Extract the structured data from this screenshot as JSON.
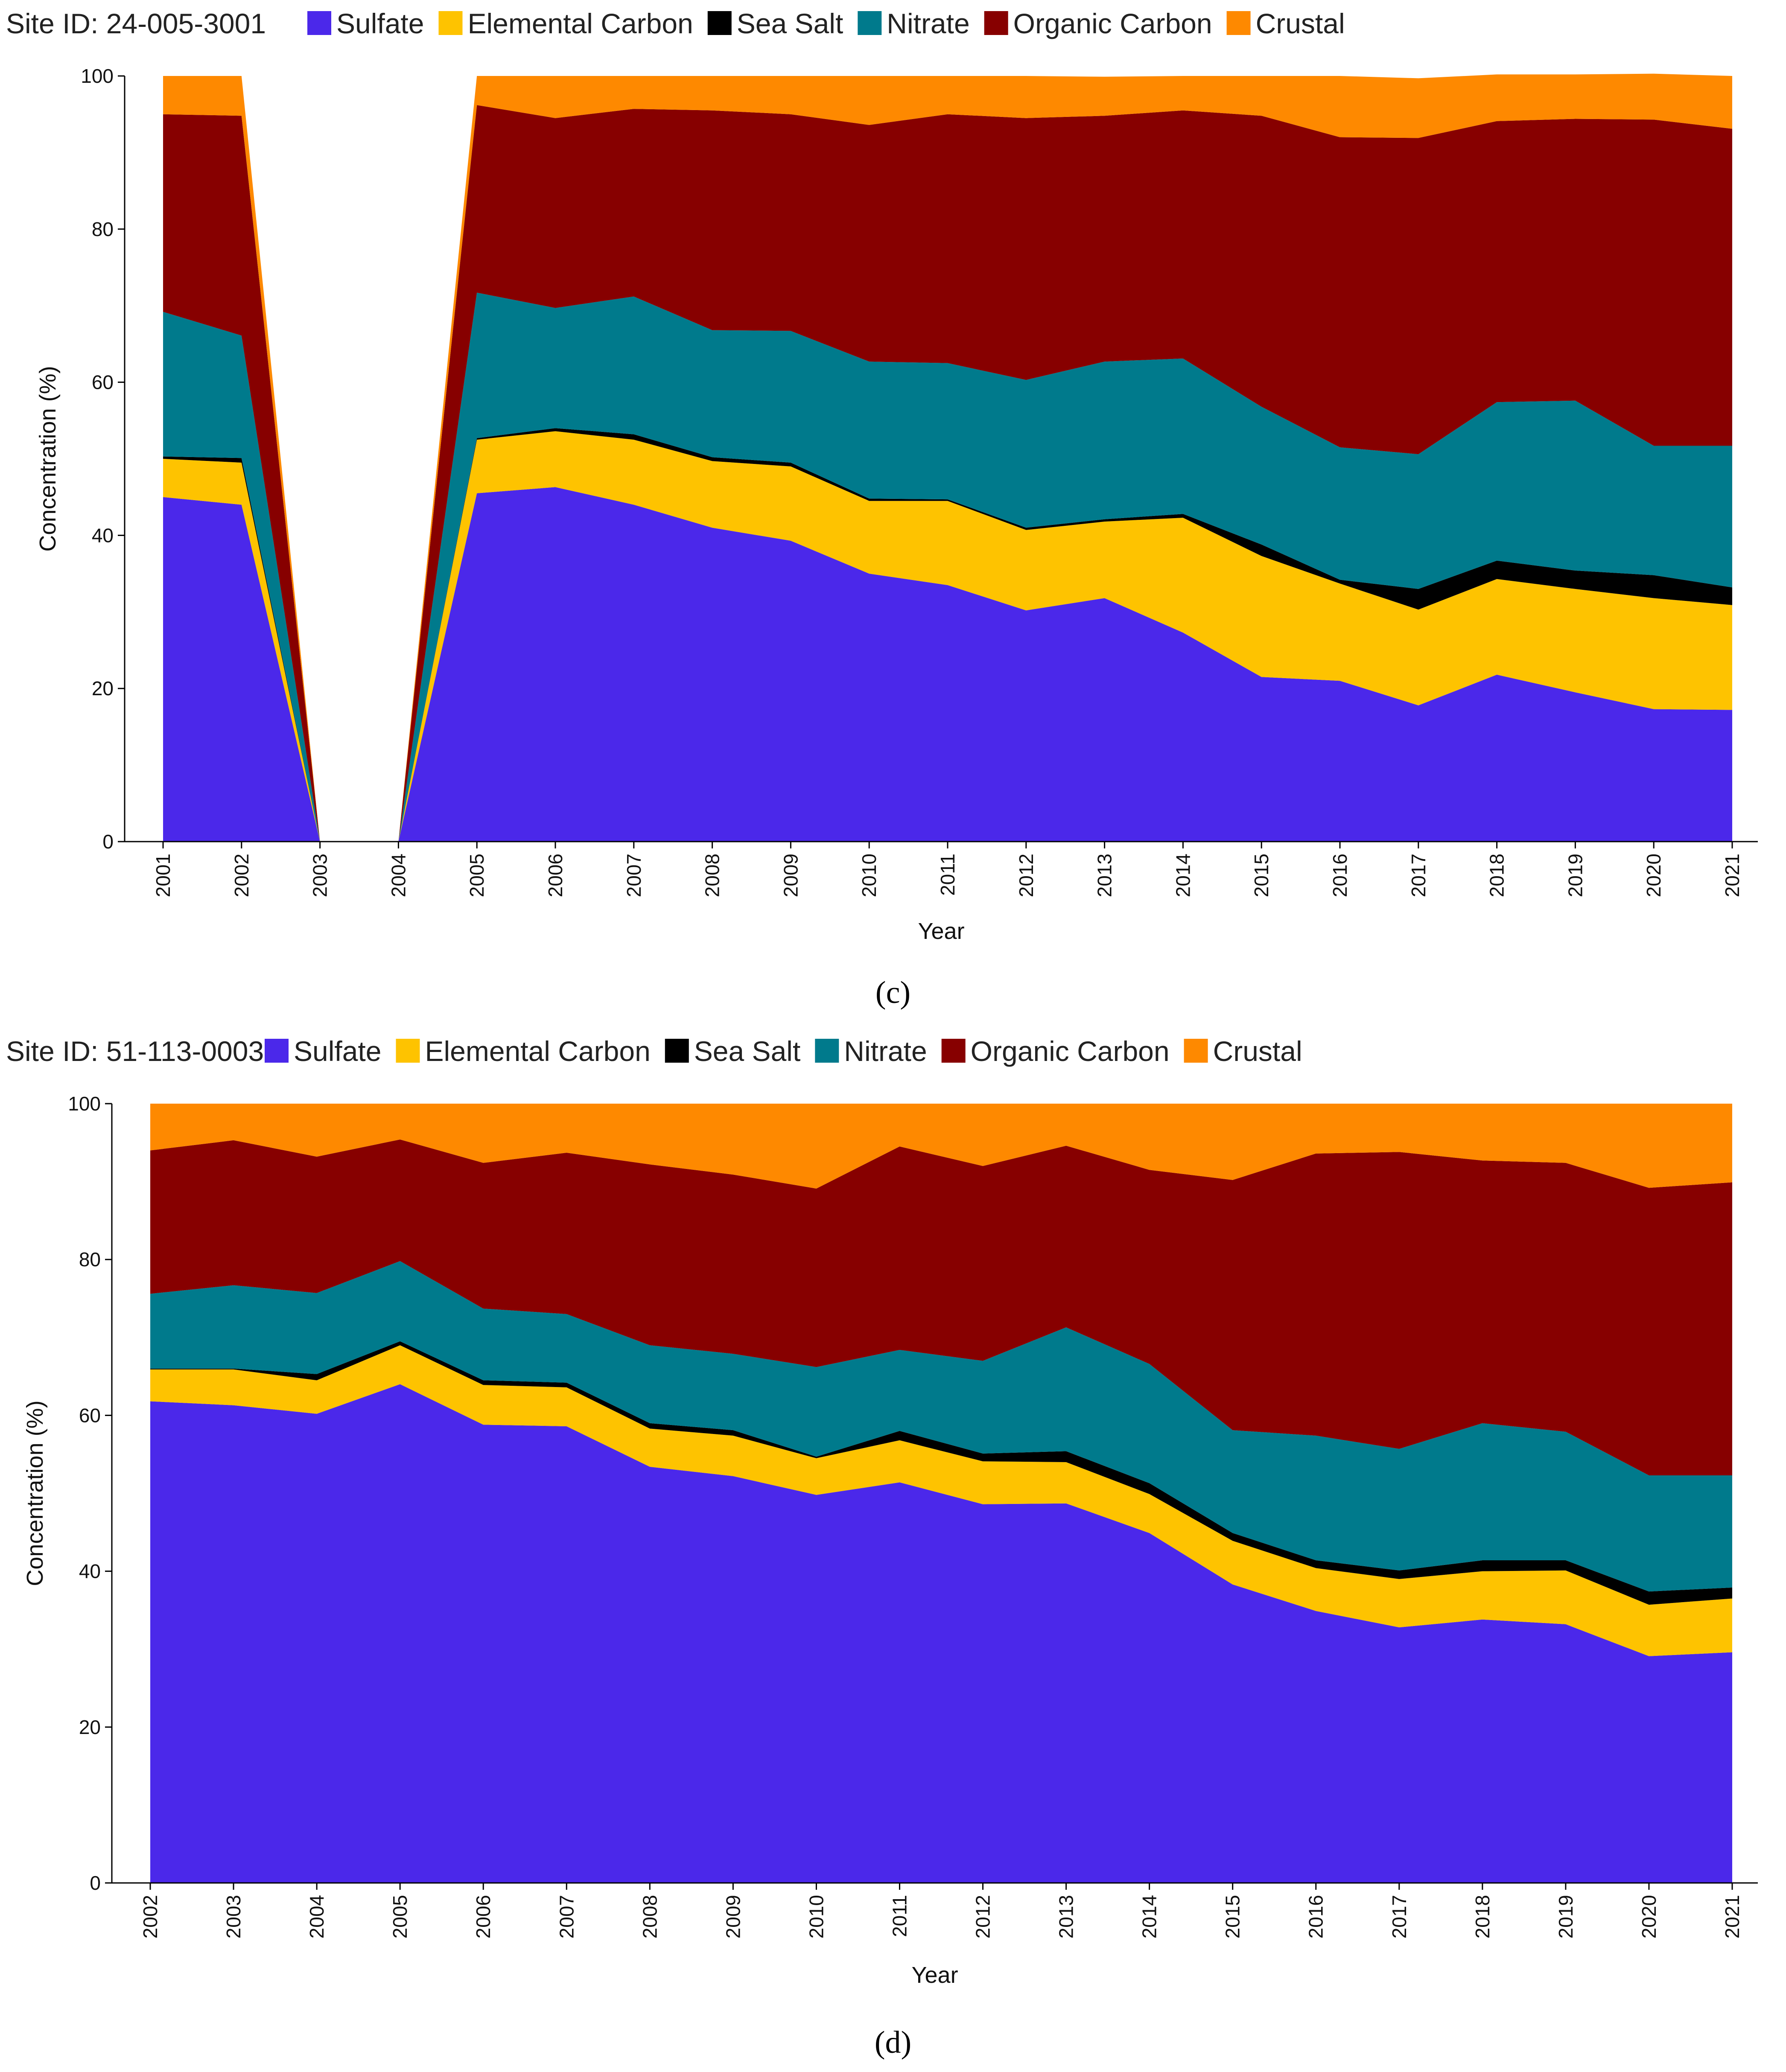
{
  "colors": {
    "Sulfate": "#4b28ea",
    "Elemental Carbon": "#fec300",
    "Sea Salt": "#000000",
    "Nitrate": "#007a8c",
    "Organic Carbon": "#870000",
    "Crustal": "#fe8900"
  },
  "chart_data": [
    {
      "type": "area",
      "stacked": true,
      "site_label": "Site ID: 24-005-3001",
      "caption": "(c)",
      "xlabel": "Year",
      "ylabel": "Concentration (%)",
      "ylim": [
        0,
        100
      ],
      "yticks": [
        0,
        20,
        40,
        60,
        80,
        100
      ],
      "legend_position": "top",
      "categories": [
        "2001",
        "2002",
        "2003",
        "2004",
        "2005",
        "2006",
        "2007",
        "2008",
        "2009",
        "2010",
        "2011",
        "2012",
        "2013",
        "2014",
        "2015",
        "2016",
        "2017",
        "2018",
        "2019",
        "2020",
        "2021"
      ],
      "series": [
        {
          "name": "Sulfate",
          "values": [
            45.0,
            44.0,
            0,
            0,
            45.5,
            46.3,
            44.0,
            41.0,
            39.3,
            35.0,
            33.5,
            30.2,
            31.8,
            27.3,
            21.5,
            21.0,
            17.8,
            21.8,
            19.5,
            17.3,
            17.2
          ]
        },
        {
          "name": "Elemental Carbon",
          "values": [
            5.0,
            5.5,
            0,
            0,
            7.0,
            7.3,
            8.5,
            8.7,
            9.7,
            9.5,
            11.0,
            10.5,
            10.0,
            15.0,
            15.8,
            12.7,
            12.5,
            12.5,
            13.5,
            14.5,
            13.7
          ]
        },
        {
          "name": "Sea Salt",
          "values": [
            0.3,
            0.6,
            0,
            0,
            0.2,
            0.4,
            0.7,
            0.5,
            0.5,
            0.3,
            0.2,
            0.3,
            0.3,
            0.5,
            1.5,
            0.5,
            2.7,
            2.4,
            2.4,
            3.0,
            2.3
          ]
        },
        {
          "name": "Nitrate",
          "values": [
            18.9,
            16.0,
            0,
            0,
            19.0,
            15.7,
            18.0,
            16.6,
            17.2,
            17.9,
            17.8,
            19.3,
            20.6,
            20.3,
            18.0,
            17.3,
            17.6,
            20.7,
            22.2,
            16.9,
            18.5
          ]
        },
        {
          "name": "Organic Carbon",
          "values": [
            25.8,
            28.7,
            0,
            0,
            24.5,
            24.8,
            24.5,
            28.7,
            28.3,
            30.9,
            32.5,
            34.2,
            32.1,
            32.4,
            38.0,
            40.5,
            41.3,
            36.7,
            36.8,
            42.6,
            41.4
          ]
        },
        {
          "name": "Crustal",
          "values": [
            5.0,
            5.2,
            0,
            0,
            3.8,
            5.5,
            4.3,
            4.5,
            5.0,
            6.4,
            5.0,
            5.5,
            5.1,
            4.5,
            5.2,
            8.0,
            7.8,
            6.1,
            5.8,
            6.0,
            6.9
          ]
        }
      ]
    },
    {
      "type": "area",
      "stacked": true,
      "site_label": "Site ID: 51-113-0003",
      "caption": "(d)",
      "xlabel": "Year",
      "ylabel": "Concentration (%)",
      "ylim": [
        0,
        100
      ],
      "yticks": [
        0,
        20,
        40,
        60,
        80,
        100
      ],
      "legend_position": "top",
      "categories": [
        "2002",
        "2003",
        "2004",
        "2005",
        "2006",
        "2007",
        "2008",
        "2009",
        "2010",
        "2011",
        "2012",
        "2013",
        "2014",
        "2015",
        "2016",
        "2017",
        "2018",
        "2019",
        "2020",
        "2021"
      ],
      "series": [
        {
          "name": "Sulfate",
          "values": [
            61.8,
            61.3,
            60.2,
            64.0,
            58.8,
            58.6,
            53.4,
            52.2,
            49.8,
            51.4,
            48.6,
            48.7,
            44.9,
            38.3,
            34.9,
            32.8,
            33.8,
            33.2,
            29.1,
            29.6
          ]
        },
        {
          "name": "Elemental Carbon",
          "values": [
            4.1,
            4.6,
            4.3,
            5.0,
            5.1,
            5.0,
            4.9,
            5.2,
            4.7,
            5.4,
            5.5,
            5.3,
            5.0,
            5.6,
            5.5,
            6.2,
            6.2,
            6.9,
            6.6,
            6.9
          ]
        },
        {
          "name": "Sea Salt",
          "values": [
            0.1,
            0.1,
            0.8,
            0.5,
            0.6,
            0.6,
            0.7,
            0.7,
            0.2,
            1.2,
            1.0,
            1.4,
            1.4,
            1.0,
            1.0,
            1.1,
            1.4,
            1.3,
            1.7,
            1.4
          ]
        },
        {
          "name": "Nitrate",
          "values": [
            9.6,
            10.7,
            10.4,
            10.3,
            9.2,
            8.8,
            10.0,
            9.8,
            11.5,
            10.4,
            11.9,
            15.9,
            15.3,
            13.2,
            16.0,
            15.6,
            17.6,
            16.5,
            14.9,
            14.4
          ]
        },
        {
          "name": "Organic Carbon",
          "values": [
            18.4,
            18.6,
            17.5,
            15.6,
            18.7,
            20.7,
            23.2,
            23.0,
            22.9,
            26.1,
            25.0,
            23.3,
            24.9,
            32.1,
            36.2,
            38.1,
            33.7,
            34.5,
            36.9,
            37.6
          ]
        },
        {
          "name": "Crustal",
          "values": [
            6.0,
            4.7,
            6.8,
            4.6,
            7.6,
            6.3,
            7.8,
            9.1,
            10.9,
            5.5,
            8.0,
            5.4,
            8.5,
            9.8,
            6.4,
            6.2,
            7.3,
            7.6,
            10.8,
            10.1
          ]
        }
      ]
    }
  ]
}
